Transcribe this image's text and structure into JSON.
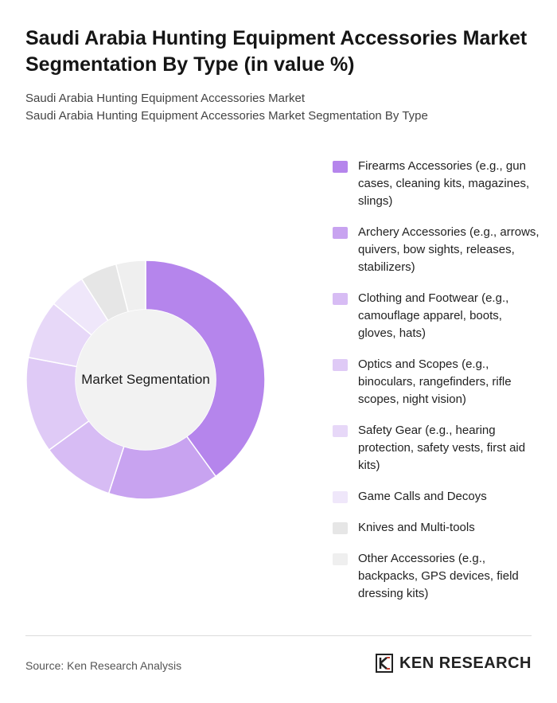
{
  "title": "Saudi Arabia Hunting Equipment Accessories Market Segmentation By Type (in value %)",
  "subtitles": [
    "Saudi Arabia Hunting Equipment Accessories Market",
    "Saudi Arabia Hunting Equipment Accessories Market Segmentation By Type"
  ],
  "chart_data": {
    "type": "pie",
    "variant": "donut",
    "center_label": "Market Segmentation",
    "categories": [
      "Firearms Accessories (e.g., gun cases, cleaning kits, magazines, slings)",
      "Archery Accessories (e.g., arrows, quivers, bow sights, releases, stabilizers)",
      "Clothing and Footwear (e.g., camouflage apparel, boots, gloves, hats)",
      "Optics and Scopes (e.g., binoculars, rangefinders, rifle scopes, night vision)",
      "Safety Gear (e.g., hearing protection, safety vests, first aid kits)",
      "Game Calls and Decoys",
      "Knives and Multi-tools",
      "Other Accessories (e.g., backpacks, GPS devices, field dressing kits)"
    ],
    "values": [
      40,
      15,
      10,
      13,
      8,
      5,
      5,
      4
    ],
    "colors": [
      "#b585ec",
      "#c8a3f0",
      "#d7bcf4",
      "#dfcaf6",
      "#e7d8f8",
      "#efe7fa",
      "#e6e6e6",
      "#efefef"
    ],
    "legend_position": "right"
  },
  "footer": {
    "source": "Source: Ken Research Analysis",
    "brand": "KEN RESEARCH"
  }
}
